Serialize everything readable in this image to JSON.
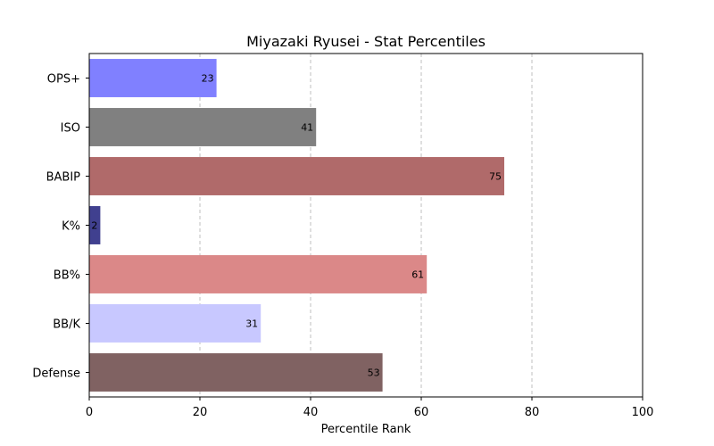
{
  "chart_data": {
    "type": "bar",
    "orientation": "horizontal",
    "title": "Miyazaki Ryusei - Stat Percentiles",
    "xlabel": "Percentile Rank",
    "ylabel": "",
    "xlim": [
      0,
      100
    ],
    "xticks": [
      0,
      20,
      40,
      60,
      80,
      100
    ],
    "grid": "x-dashed",
    "categories": [
      "OPS+",
      "ISO",
      "BABIP",
      "K%",
      "BB%",
      "BB/K",
      "Defense"
    ],
    "values": [
      23,
      41,
      75,
      2,
      61,
      31,
      53
    ],
    "colors": [
      "#8080ff",
      "#808080",
      "#b06a6a",
      "#40408f",
      "#db8888",
      "#c8c8ff",
      "#806262"
    ]
  }
}
